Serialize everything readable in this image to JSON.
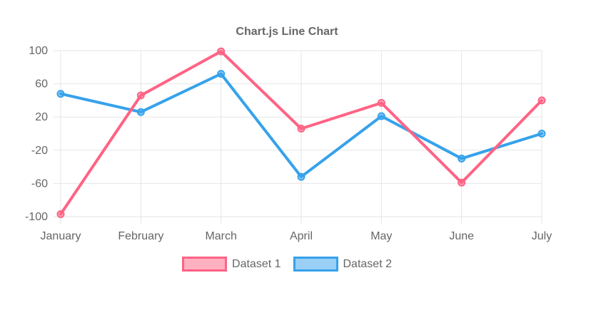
{
  "chart_data": {
    "type": "line",
    "title": "Chart.js Line Chart",
    "categories": [
      "January",
      "February",
      "March",
      "April",
      "May",
      "June",
      "July"
    ],
    "series": [
      {
        "name": "Dataset 1",
        "color": "#ff6384",
        "fill_color": "rgba(255, 99, 132, 0.5)",
        "values": [
          -97,
          46,
          99,
          6,
          37,
          -59,
          40
        ]
      },
      {
        "name": "Dataset 2",
        "color": "#36a2eb",
        "fill_color": "rgba(54, 162, 235, 0.5)",
        "values": [
          48,
          26,
          72,
          -52,
          21,
          -30,
          0
        ]
      }
    ],
    "xlabel": "",
    "ylabel": "",
    "ylim": [
      -100,
      100
    ],
    "yticks": [
      100,
      60,
      20,
      -20,
      -60,
      -100
    ],
    "grid": true,
    "legend_position": "bottom",
    "title_position": "top",
    "text_color": "#666666",
    "grid_color": "#e6e6e6",
    "background_color": "#ffffff"
  }
}
